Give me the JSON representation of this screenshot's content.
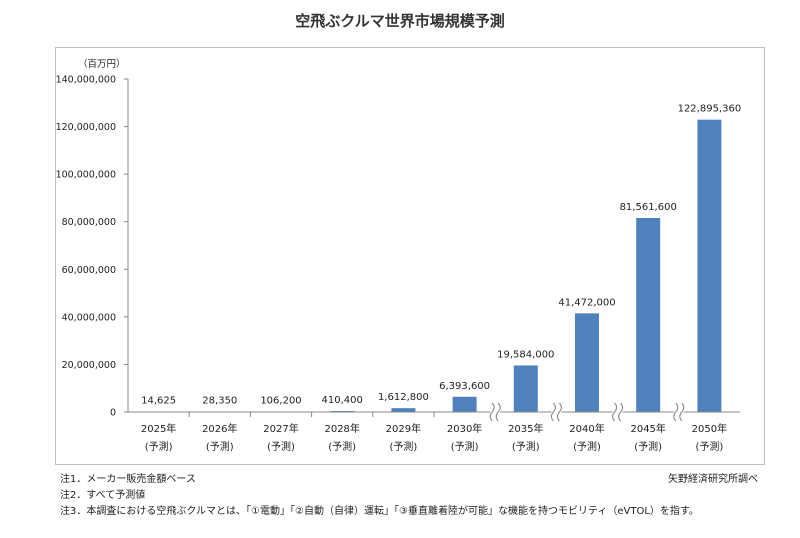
{
  "page": {
    "title": "空飛ぶクルマ世界市場規模予測"
  },
  "chart_data": {
    "type": "bar",
    "title": "空飛ぶクルマ世界市場規模予測",
    "unit_label": "（百万円）",
    "categories": [
      [
        "2025年",
        "(予測)"
      ],
      [
        "2026年",
        "(予測)"
      ],
      [
        "2027年",
        "(予測)"
      ],
      [
        "2028年",
        "(予測)"
      ],
      [
        "2029年",
        "(予測)"
      ],
      [
        "2030年",
        "(予測)"
      ],
      [
        "2035年",
        "(予測)"
      ],
      [
        "2040年",
        "(予測)"
      ],
      [
        "2045年",
        "(予測)"
      ],
      [
        "2050年",
        "(予測)"
      ]
    ],
    "values": [
      14625,
      28350,
      106200,
      410400,
      1612800,
      6393600,
      19584000,
      41472000,
      81561600,
      122895360
    ],
    "value_labels": [
      "14,625",
      "28,350",
      "106,200",
      "410,400",
      "1,612,800",
      "6,393,600",
      "19,584,000",
      "41,472,000",
      "81,561,600",
      "122,895,360"
    ],
    "yticks": [
      "0",
      "20,000,000",
      "40,000,000",
      "60,000,000",
      "80,000,000",
      "100,000,000",
      "120,000,000",
      "140,000,000"
    ],
    "ylim": [
      0,
      140000000
    ],
    "axis_breaks_after_index": [
      5,
      6,
      7,
      8
    ],
    "bar_color": "#4f81bd",
    "grid": false,
    "legend": "none"
  },
  "notes": [
    "注1．メーカー販売金額ベース",
    "注2．すべて予測値",
    "注3．本調査における空飛ぶクルマとは、「①電動」「②自動（自律）運転」「③垂直離着陸が可能」な機能を持つモビリティ（eVTOL）を指す。"
  ],
  "source": "矢野経済研究所調べ"
}
